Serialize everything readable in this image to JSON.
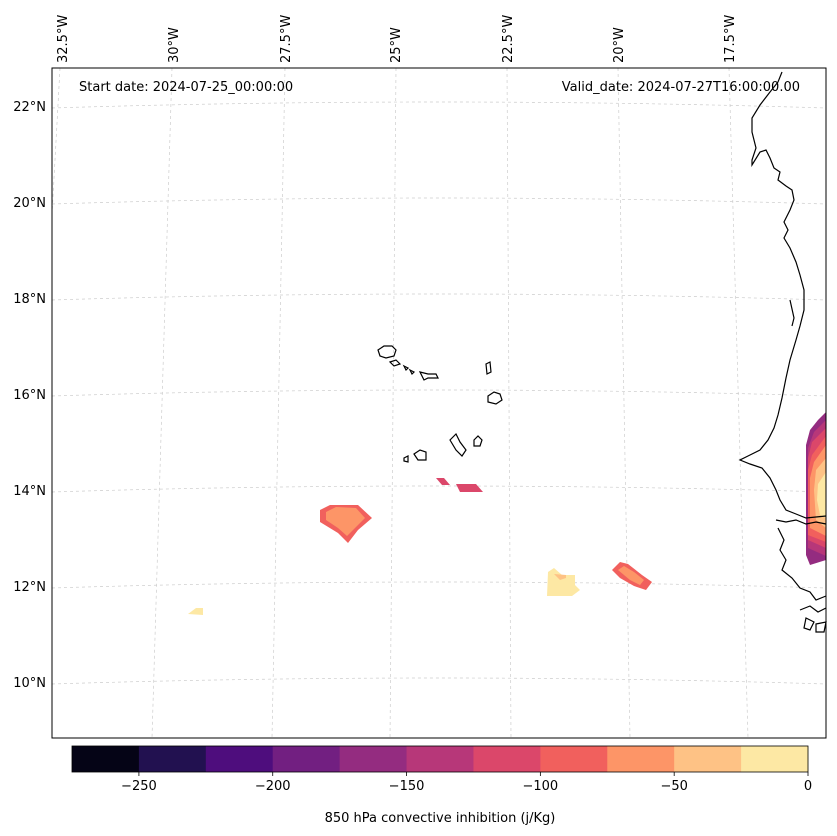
{
  "map": {
    "start_date": "Start date: 2024-07-25_00:00:00",
    "valid_date": "Valid_date: 2024-07-27T16:00:00.00",
    "lon_labels": [
      "32.5°W",
      "30°W",
      "27.5°W",
      "25°W",
      "22.5°W",
      "20°W",
      "17.5°W"
    ],
    "lat_labels": [
      "22°N",
      "20°N",
      "18°N",
      "16°N",
      "14°N",
      "12°N",
      "10°N"
    ],
    "coastline_color": "#000000",
    "gridline_color": "#cccccc"
  },
  "colorbar": {
    "title": "850 hPa convective inhibition (j/Kg)",
    "ticks": [
      "−250",
      "−200",
      "−150",
      "−100",
      "−50",
      "0"
    ],
    "range": [
      -275,
      0
    ],
    "levels": [
      -275,
      -250,
      -225,
      -200,
      -175,
      -150,
      -125,
      -100,
      -75,
      -50,
      -25,
      0
    ],
    "colors": [
      "#050416",
      "#221150",
      "#4e0d7d",
      "#721f81",
      "#942c80",
      "#b73779",
      "#db476a",
      "#f1605d",
      "#fd9567",
      "#fec285",
      "#fde8a4"
    ]
  }
}
